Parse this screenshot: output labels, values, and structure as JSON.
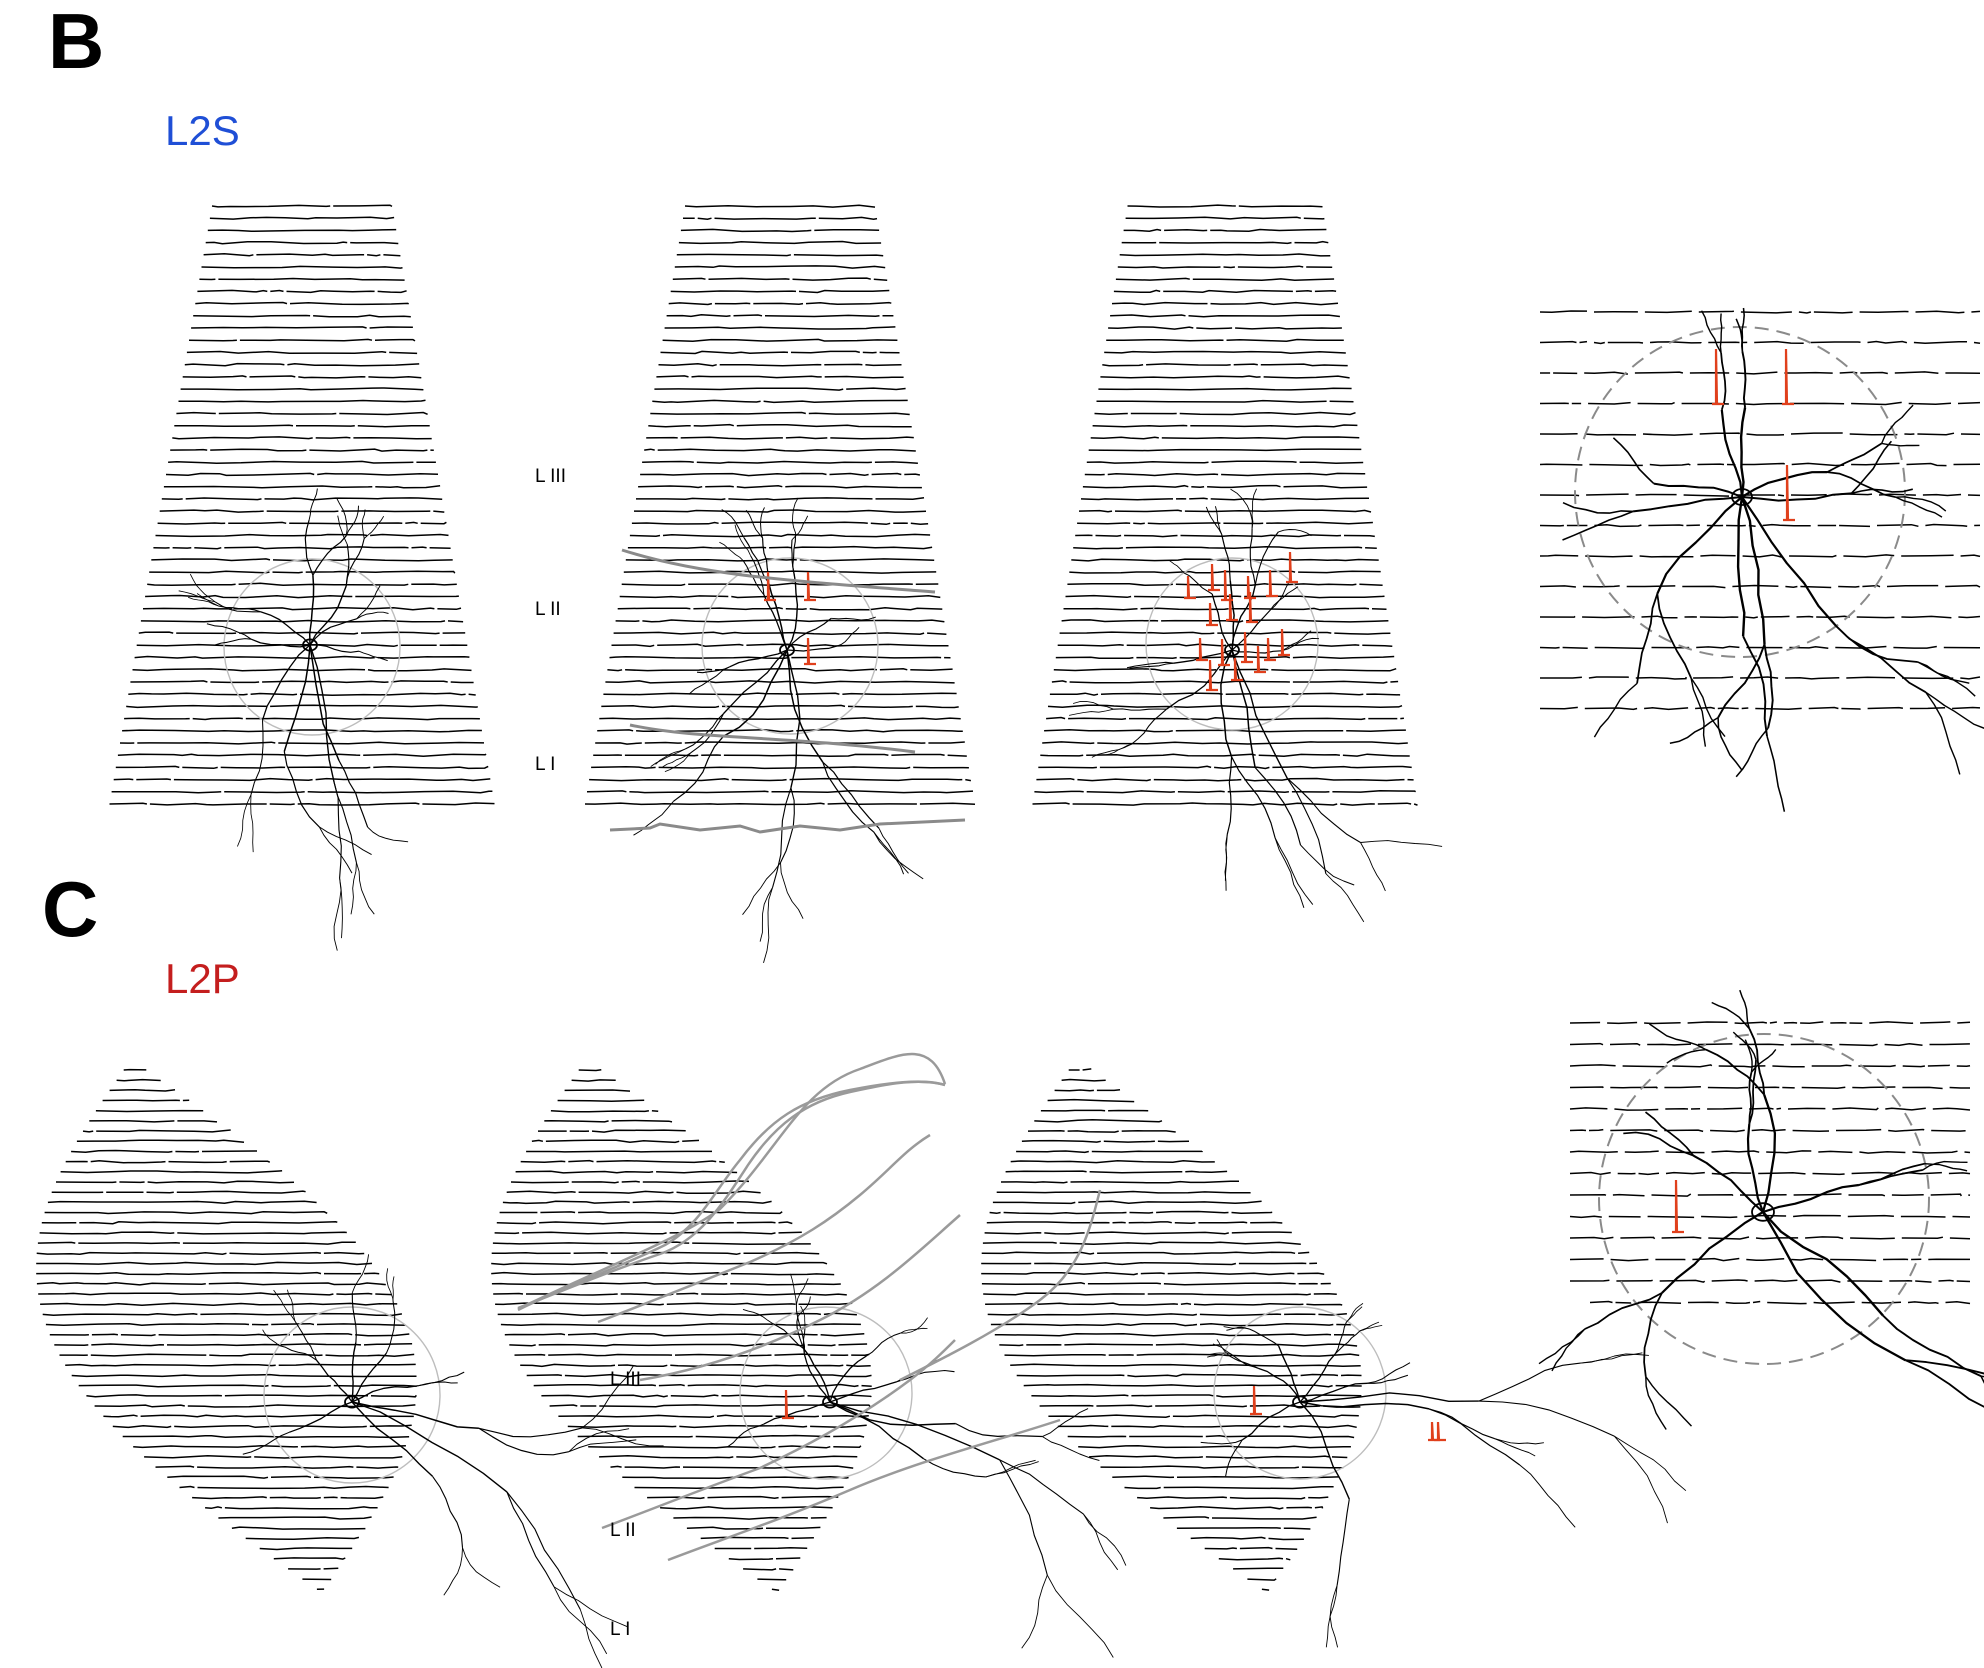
{
  "panels": [
    {
      "letter": "B",
      "cell_type": "L2S",
      "cell_type_color": "#1f4fd6",
      "layer_labels": [
        "L III",
        "L II",
        "L I"
      ]
    },
    {
      "letter": "C",
      "cell_type": "L2P",
      "cell_type_color": "#c41e1e",
      "layer_labels": [
        "L III",
        "L II",
        "L I"
      ]
    }
  ],
  "colors": {
    "trace": "#000000",
    "spike": "#e0401c",
    "boundary": "#8a8a8a",
    "circle": "#bdbdbd",
    "zoom_circle": "#8a8a8a"
  }
}
